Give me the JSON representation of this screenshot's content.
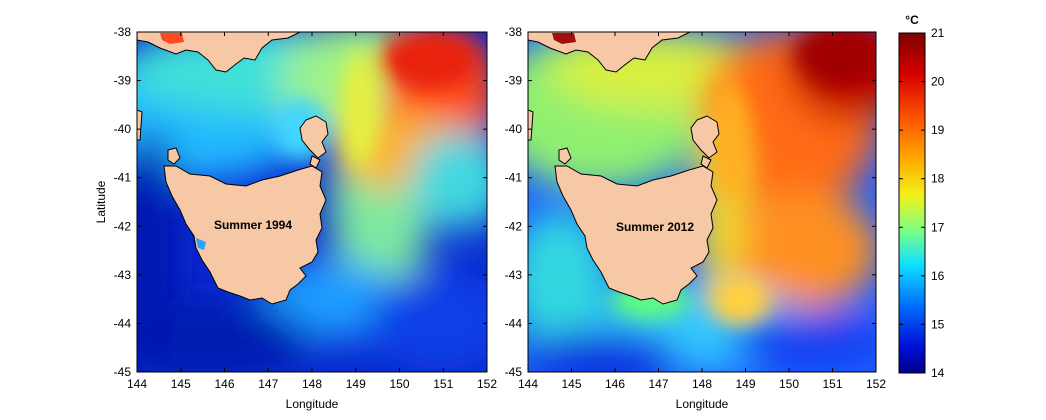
{
  "figure": {
    "panels": [
      {
        "id": "panel-1994",
        "label": "Summer 1994",
        "xlabel": "Longitude",
        "ylabel": "Latitude",
        "x_ticks": [
          "144",
          "145",
          "146",
          "147",
          "148",
          "149",
          "150",
          "151",
          "152"
        ],
        "y_ticks": [
          "-38",
          "-39",
          "-40",
          "-41",
          "-42",
          "-43",
          "-44",
          "-45"
        ]
      },
      {
        "id": "panel-2012",
        "label": "Summer 2012",
        "xlabel": "Longitude",
        "ylabel": "",
        "x_ticks": [
          "144",
          "145",
          "146",
          "147",
          "148",
          "149",
          "150",
          "151",
          "152"
        ],
        "y_ticks": [
          "-38",
          "-39",
          "-40",
          "-41",
          "-42",
          "-43",
          "-44",
          "-45"
        ]
      }
    ],
    "colorbar": {
      "unit": "°C",
      "ticks": [
        "21",
        "20",
        "19",
        "18",
        "17",
        "16",
        "15",
        "14"
      ],
      "range": [
        14,
        21
      ]
    },
    "colors": {
      "land": "#f6c8a6",
      "cold": "#00008f",
      "cool": "#1560ff",
      "mild": "#22d6e8",
      "temperate": "#8cf07a",
      "warm": "#f7e63a",
      "hot": "#ff7a1a",
      "very_hot": "#c00000",
      "coast": "#000000"
    }
  }
}
